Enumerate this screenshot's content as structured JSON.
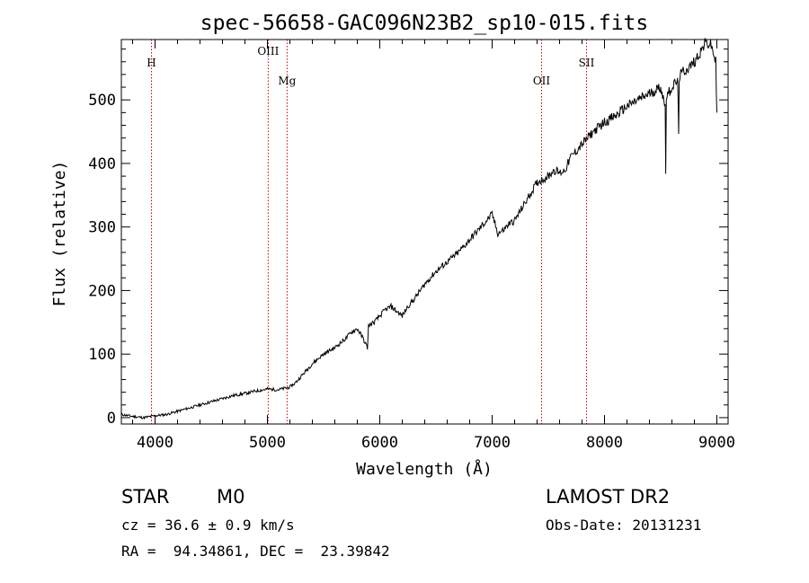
{
  "chart_data": {
    "type": "line",
    "title": "spec-56658-GAC096N23B2_sp10-015.fits",
    "xlabel": "Wavelength (Å)",
    "ylabel": "Flux (relative)",
    "xlim": [
      3700,
      9100
    ],
    "ylim": [
      -10,
      595
    ],
    "xticks": [
      4000,
      5000,
      6000,
      7000,
      8000,
      9000
    ],
    "yticks": [
      0,
      100,
      200,
      300,
      400,
      500
    ],
    "grid": false,
    "line_color": "#000000",
    "marker_color": "#cc0000",
    "lines": [
      {
        "label": "H",
        "wavelength": 3968
      },
      {
        "label": "OIII",
        "wavelength": 5007
      },
      {
        "label": "Mg",
        "wavelength": 5175
      },
      {
        "label": "OII",
        "wavelength": 7440
      },
      {
        "label": "SII",
        "wavelength": 7840
      }
    ],
    "series": [
      {
        "x": [
          3700,
          3800,
          3900,
          4000,
          4100,
          4200,
          4300,
          4400,
          4500,
          4600,
          4700,
          4800,
          4900,
          5000,
          5100,
          5200,
          5250,
          5300,
          5400,
          5500,
          5600,
          5700,
          5750,
          5800,
          5850,
          5890,
          5900,
          5950,
          6000,
          6050,
          6100,
          6200,
          6250,
          6300,
          6400,
          6500,
          6600,
          6700,
          6800,
          6900,
          7000,
          7050,
          7100,
          7150,
          7200,
          7300,
          7400,
          7500,
          7550,
          7600,
          7650,
          7700,
          7750,
          7800,
          7850,
          7900,
          8000,
          8100,
          8200,
          8300,
          8400,
          8500,
          8540,
          8545,
          8550,
          8600,
          8650,
          8660,
          8665,
          8700,
          8750,
          8800,
          8850,
          8900,
          8950,
          8990,
          9000
        ],
        "y": [
          5,
          2,
          0,
          3,
          5,
          10,
          15,
          20,
          25,
          30,
          35,
          38,
          42,
          45,
          44,
          48,
          55,
          65,
          85,
          100,
          110,
          125,
          135,
          140,
          125,
          110,
          145,
          150,
          160,
          170,
          175,
          160,
          175,
          185,
          210,
          230,
          245,
          260,
          280,
          300,
          320,
          290,
          295,
          305,
          310,
          340,
          370,
          380,
          390,
          385,
          390,
          410,
          420,
          430,
          440,
          450,
          465,
          475,
          490,
          500,
          510,
          520,
          490,
          390,
          505,
          520,
          530,
          450,
          535,
          545,
          550,
          560,
          575,
          590,
          585,
          560,
          480
        ]
      }
    ]
  },
  "info": {
    "class": "STAR",
    "subclass": "M0",
    "survey": "LAMOST DR2",
    "cz": "cz = 36.6 ± 0.9 km/s",
    "obs_date": "Obs-Date: 20131231",
    "coords": "RA =  94.34861, DEC =  23.39842"
  }
}
